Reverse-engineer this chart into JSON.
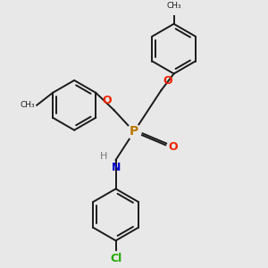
{
  "background_color": "#e8e8e8",
  "line_color": "#1a1a1a",
  "P_color": "#bb7700",
  "O_color": "#ee2200",
  "N_color": "#0000cc",
  "H_color": "#777777",
  "Cl_color": "#22aa00",
  "lw": 1.4,
  "figsize": [
    3.0,
    3.0
  ],
  "dpi": 100,
  "xlim": [
    -3.5,
    3.5
  ],
  "ylim": [
    -3.8,
    3.5
  ]
}
